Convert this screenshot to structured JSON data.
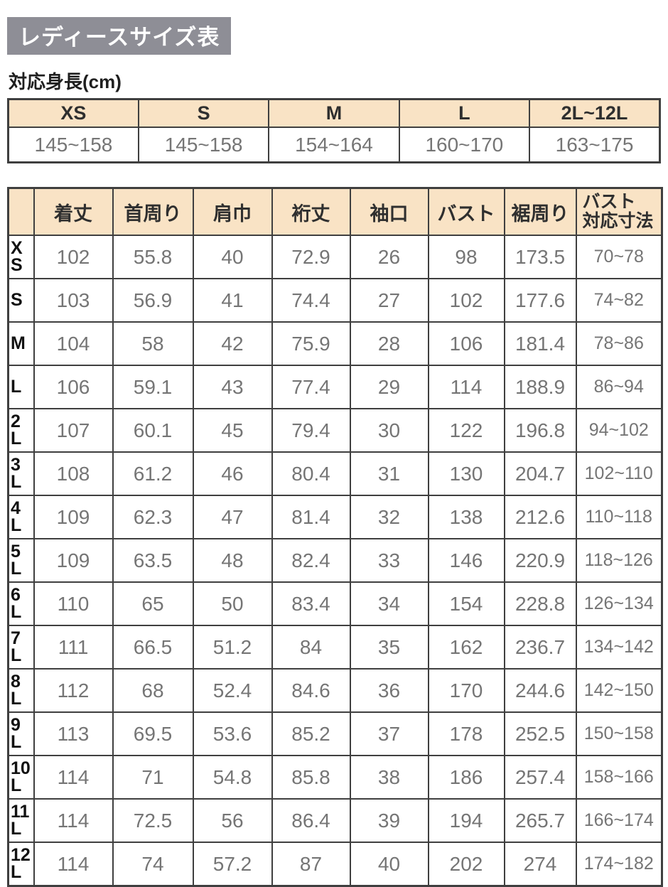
{
  "page": {
    "title": "レディースサイズ表",
    "subtitle": "対応身長(cm)"
  },
  "colors": {
    "title_bg": "#8e8e96",
    "header_bg": "#f9e3c5",
    "border": "#3f3f3f",
    "value_text": "#757575",
    "label_text": "#111111"
  },
  "height_table": {
    "columns": [
      "XS",
      "S",
      "M",
      "L",
      "2L~12L"
    ],
    "values": [
      "145~158",
      "145~158",
      "154~164",
      "160~170",
      "163~175"
    ]
  },
  "size_table": {
    "corner_label": "",
    "headers": [
      "着丈",
      "首周り",
      "肩巾",
      "裄丈",
      "袖口",
      "バスト",
      "裾周り"
    ],
    "bust_range_header": "バスト\n対応寸法",
    "rows": [
      {
        "size": "XS",
        "label": "X\nS",
        "values": [
          "102",
          "55.8",
          "40",
          "72.9",
          "26",
          "98",
          "173.5"
        ],
        "bust_range": "70~78"
      },
      {
        "size": "S",
        "label": "S",
        "values": [
          "103",
          "56.9",
          "41",
          "74.4",
          "27",
          "102",
          "177.6"
        ],
        "bust_range": "74~82"
      },
      {
        "size": "M",
        "label": "M",
        "values": [
          "104",
          "58",
          "42",
          "75.9",
          "28",
          "106",
          "181.4"
        ],
        "bust_range": "78~86"
      },
      {
        "size": "L",
        "label": "L",
        "values": [
          "106",
          "59.1",
          "43",
          "77.4",
          "29",
          "114",
          "188.9"
        ],
        "bust_range": "86~94"
      },
      {
        "size": "2L",
        "label": "2\nL",
        "values": [
          "107",
          "60.1",
          "45",
          "79.4",
          "30",
          "122",
          "196.8"
        ],
        "bust_range": "94~102"
      },
      {
        "size": "3L",
        "label": "3\nL",
        "values": [
          "108",
          "61.2",
          "46",
          "80.4",
          "31",
          "130",
          "204.7"
        ],
        "bust_range": "102~110"
      },
      {
        "size": "4L",
        "label": "4\nL",
        "values": [
          "109",
          "62.3",
          "47",
          "81.4",
          "32",
          "138",
          "212.6"
        ],
        "bust_range": "110~118"
      },
      {
        "size": "5L",
        "label": "5\nL",
        "values": [
          "109",
          "63.5",
          "48",
          "82.4",
          "33",
          "146",
          "220.9"
        ],
        "bust_range": "118~126"
      },
      {
        "size": "6L",
        "label": "6\nL",
        "values": [
          "110",
          "65",
          "50",
          "83.4",
          "34",
          "154",
          "228.8"
        ],
        "bust_range": "126~134"
      },
      {
        "size": "7L",
        "label": "7\nL",
        "values": [
          "111",
          "66.5",
          "51.2",
          "84",
          "35",
          "162",
          "236.7"
        ],
        "bust_range": "134~142"
      },
      {
        "size": "8L",
        "label": "8\nL",
        "values": [
          "112",
          "68",
          "52.4",
          "84.6",
          "36",
          "170",
          "244.6"
        ],
        "bust_range": "142~150"
      },
      {
        "size": "9L",
        "label": "9\nL",
        "values": [
          "113",
          "69.5",
          "53.6",
          "85.2",
          "37",
          "178",
          "252.5"
        ],
        "bust_range": "150~158"
      },
      {
        "size": "10L",
        "label": "10\nL",
        "values": [
          "114",
          "71",
          "54.8",
          "85.8",
          "38",
          "186",
          "257.4"
        ],
        "bust_range": "158~166"
      },
      {
        "size": "11L",
        "label": "11\nL",
        "values": [
          "114",
          "72.5",
          "56",
          "86.4",
          "39",
          "194",
          "265.7"
        ],
        "bust_range": "166~174"
      },
      {
        "size": "12L",
        "label": "12\nL",
        "values": [
          "114",
          "74",
          "57.2",
          "87",
          "40",
          "202",
          "274"
        ],
        "bust_range": "174~182"
      }
    ]
  }
}
